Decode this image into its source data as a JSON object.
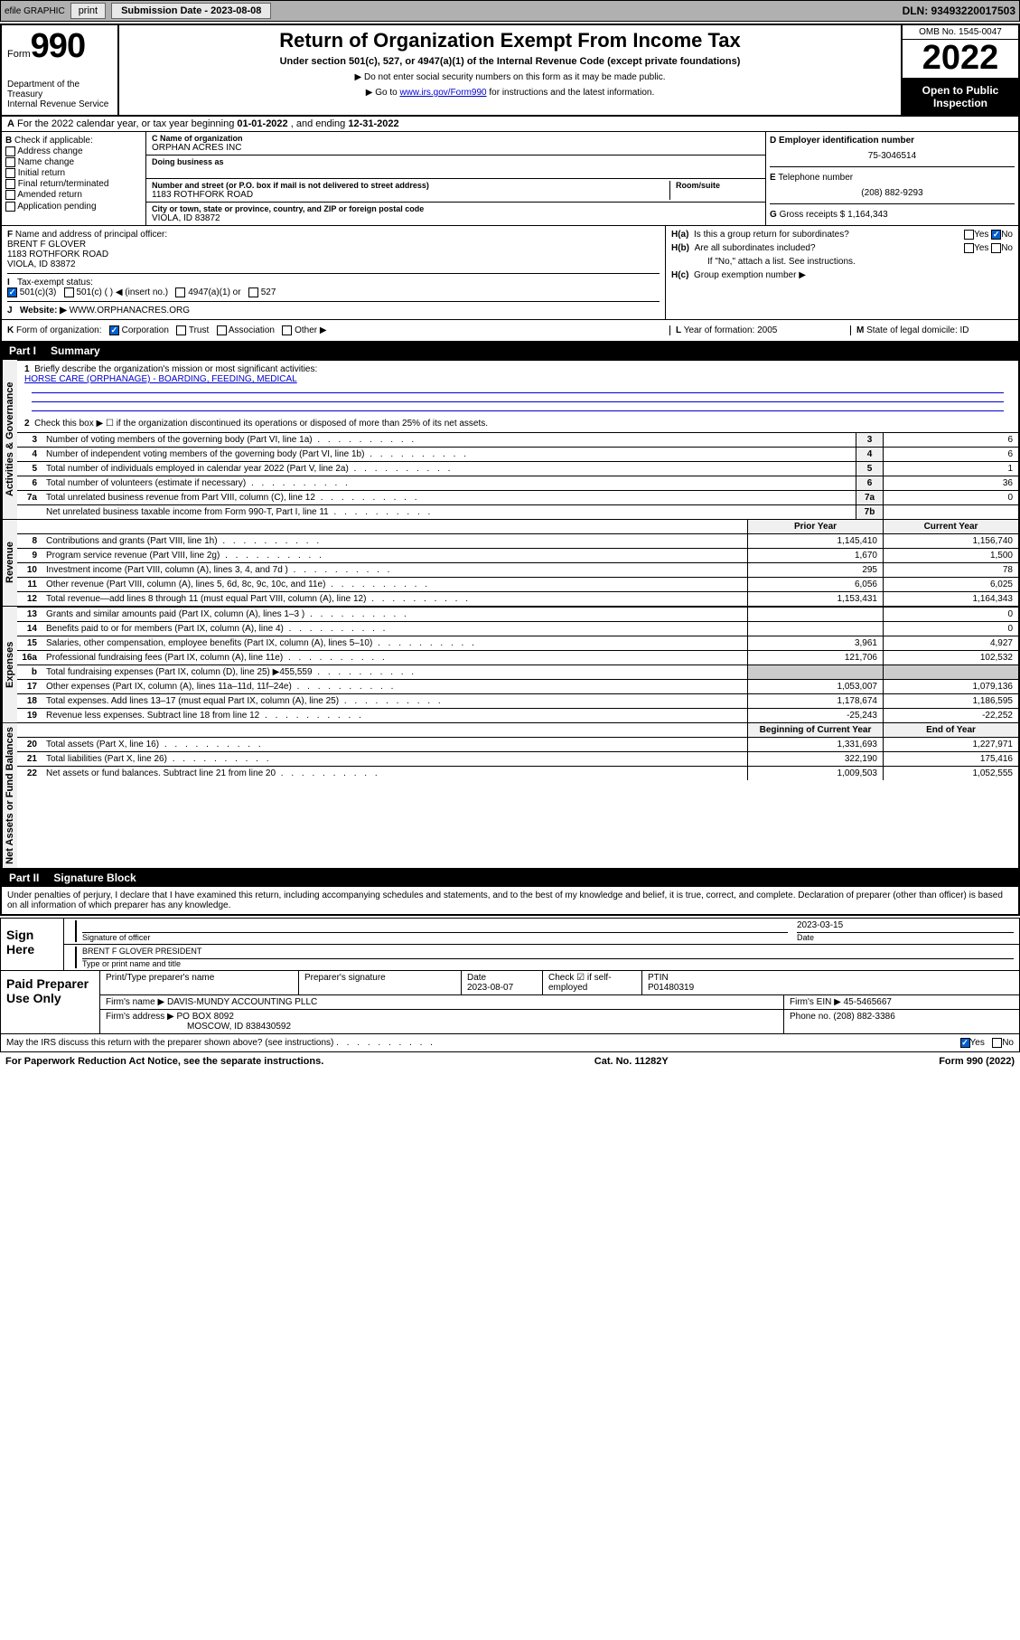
{
  "topbar": {
    "efile": "efile GRAPHIC",
    "print": "print",
    "submission": "Submission Date - 2023-08-08",
    "dln": "DLN: 93493220017503"
  },
  "header": {
    "form_word": "Form",
    "form_num": "990",
    "title": "Return of Organization Exempt From Income Tax",
    "subtitle": "Under section 501(c), 527, or 4947(a)(1) of the Internal Revenue Code (except private foundations)",
    "note1": "▶ Do not enter social security numbers on this form as it may be made public.",
    "note2_pre": "▶ Go to ",
    "note2_link": "www.irs.gov/Form990",
    "note2_post": " for instructions and the latest information.",
    "dept": "Department of the Treasury",
    "irs": "Internal Revenue Service",
    "omb": "OMB No. 1545-0047",
    "year": "2022",
    "open1": "Open to Public",
    "open2": "Inspection"
  },
  "row_a": {
    "text_pre": "For the 2022 calendar year, or tax year beginning ",
    "begin": "01-01-2022",
    "mid": "   , and ending ",
    "end": "12-31-2022"
  },
  "section_b": {
    "label": "Check if applicable:",
    "opts": [
      "Address change",
      "Name change",
      "Initial return",
      "Final return/terminated",
      "Amended return",
      "Application pending"
    ],
    "c_label": "Name of organization",
    "c_val": "ORPHAN ACRES INC",
    "dba_label": "Doing business as",
    "addr_label": "Number and street (or P.O. box if mail is not delivered to street address)",
    "room_label": "Room/suite",
    "addr_val": "1183 ROTHFORK ROAD",
    "city_label": "City or town, state or province, country, and ZIP or foreign postal code",
    "city_val": "VIOLA, ID  83872",
    "d_label": "Employer identification number",
    "d_val": "75-3046514",
    "e_label": "Telephone number",
    "e_val": "(208) 882-9293",
    "g_label": "Gross receipts $",
    "g_val": "1,164,343"
  },
  "row_f": {
    "f_label": "Name and address of principal officer:",
    "f_name": "BRENT F GLOVER",
    "f_addr1": "1183 ROTHFORK ROAD",
    "f_addr2": "VIOLA, ID  83872",
    "ha": "Is this a group return for subordinates?",
    "hb": "Are all subordinates included?",
    "hnote": "If \"No,\" attach a list. See instructions.",
    "hc": "Group exemption number ▶",
    "yes": "Yes",
    "no": "No"
  },
  "row_i": {
    "label": "Tax-exempt status:",
    "o1": "501(c)(3)",
    "o2": "501(c) (  ) ◀ (insert no.)",
    "o3": "4947(a)(1) or",
    "o4": "527"
  },
  "row_j": {
    "label": "Website: ▶",
    "val": "WWW.ORPHANACRES.ORG"
  },
  "row_k": {
    "k_label": "Form of organization:",
    "k_opts": [
      "Corporation",
      "Trust",
      "Association",
      "Other ▶"
    ],
    "l_label": "Year of formation:",
    "l_val": "2005",
    "m_label": "State of legal domicile:",
    "m_val": "ID"
  },
  "part1": {
    "num": "Part I",
    "title": "Summary",
    "q1_label": "Briefly describe the organization's mission or most significant activities:",
    "q1_val": "HORSE CARE (ORPHANAGE) - BOARDING, FEEDING, MEDICAL",
    "q2": "Check this box ▶ ☐  if the organization discontinued its operations or disposed of more than 25% of its net assets.",
    "sections": {
      "governance": "Activities & Governance",
      "revenue": "Revenue",
      "expenses": "Expenses",
      "netassets": "Net Assets or Fund Balances"
    },
    "col_prior": "Prior Year",
    "col_current": "Current Year",
    "col_begin": "Beginning of Current Year",
    "col_end": "End of Year",
    "lines_gov": [
      {
        "n": "3",
        "t": "Number of voting members of the governing body (Part VI, line 1a)",
        "box": "3",
        "v": "6"
      },
      {
        "n": "4",
        "t": "Number of independent voting members of the governing body (Part VI, line 1b)",
        "box": "4",
        "v": "6"
      },
      {
        "n": "5",
        "t": "Total number of individuals employed in calendar year 2022 (Part V, line 2a)",
        "box": "5",
        "v": "1"
      },
      {
        "n": "6",
        "t": "Total number of volunteers (estimate if necessary)",
        "box": "6",
        "v": "36"
      },
      {
        "n": "7a",
        "t": "Total unrelated business revenue from Part VIII, column (C), line 12",
        "box": "7a",
        "v": "0"
      },
      {
        "n": "",
        "t": "Net unrelated business taxable income from Form 990-T, Part I, line 11",
        "box": "7b",
        "v": ""
      }
    ],
    "lines_rev": [
      {
        "n": "8",
        "t": "Contributions and grants (Part VIII, line 1h)",
        "p": "1,145,410",
        "c": "1,156,740"
      },
      {
        "n": "9",
        "t": "Program service revenue (Part VIII, line 2g)",
        "p": "1,670",
        "c": "1,500"
      },
      {
        "n": "10",
        "t": "Investment income (Part VIII, column (A), lines 3, 4, and 7d )",
        "p": "295",
        "c": "78"
      },
      {
        "n": "11",
        "t": "Other revenue (Part VIII, column (A), lines 5, 6d, 8c, 9c, 10c, and 11e)",
        "p": "6,056",
        "c": "6,025"
      },
      {
        "n": "12",
        "t": "Total revenue—add lines 8 through 11 (must equal Part VIII, column (A), line 12)",
        "p": "1,153,431",
        "c": "1,164,343"
      }
    ],
    "lines_exp": [
      {
        "n": "13",
        "t": "Grants and similar amounts paid (Part IX, column (A), lines 1–3 )",
        "p": "",
        "c": "0"
      },
      {
        "n": "14",
        "t": "Benefits paid to or for members (Part IX, column (A), line 4)",
        "p": "",
        "c": "0"
      },
      {
        "n": "15",
        "t": "Salaries, other compensation, employee benefits (Part IX, column (A), lines 5–10)",
        "p": "3,961",
        "c": "4,927"
      },
      {
        "n": "16a",
        "t": "Professional fundraising fees (Part IX, column (A), line 11e)",
        "p": "121,706",
        "c": "102,532"
      },
      {
        "n": "b",
        "t": "Total fundraising expenses (Part IX, column (D), line 25) ▶455,559",
        "p": "—",
        "c": "—"
      },
      {
        "n": "17",
        "t": "Other expenses (Part IX, column (A), lines 11a–11d, 11f–24e)",
        "p": "1,053,007",
        "c": "1,079,136"
      },
      {
        "n": "18",
        "t": "Total expenses. Add lines 13–17 (must equal Part IX, column (A), line 25)",
        "p": "1,178,674",
        "c": "1,186,595"
      },
      {
        "n": "19",
        "t": "Revenue less expenses. Subtract line 18 from line 12",
        "p": "-25,243",
        "c": "-22,252"
      }
    ],
    "lines_net": [
      {
        "n": "20",
        "t": "Total assets (Part X, line 16)",
        "p": "1,331,693",
        "c": "1,227,971"
      },
      {
        "n": "21",
        "t": "Total liabilities (Part X, line 26)",
        "p": "322,190",
        "c": "175,416"
      },
      {
        "n": "22",
        "t": "Net assets or fund balances. Subtract line 21 from line 20",
        "p": "1,009,503",
        "c": "1,052,555"
      }
    ]
  },
  "part2": {
    "num": "Part II",
    "title": "Signature Block",
    "penalties": "Under penalties of perjury, I declare that I have examined this return, including accompanying schedules and statements, and to the best of my knowledge and belief, it is true, correct, and complete. Declaration of preparer (other than officer) is based on all information of which preparer has any knowledge.",
    "sign_here": "Sign Here",
    "sig_officer": "Signature of officer",
    "sig_date_label": "Date",
    "sig_date": "2023-03-15",
    "sig_name": "BRENT F GLOVER  PRESIDENT",
    "sig_name_label": "Type or print name and title",
    "paid_label": "Paid Preparer Use Only",
    "pp_name_label": "Print/Type preparer's name",
    "pp_sig_label": "Preparer's signature",
    "pp_date_label": "Date",
    "pp_date": "2023-08-07",
    "pp_check_label": "Check ☑ if self-employed",
    "pp_ptin_label": "PTIN",
    "pp_ptin": "P01480319",
    "firm_name_label": "Firm's name    ▶",
    "firm_name": "DAVIS-MUNDY ACCOUNTING PLLC",
    "firm_ein_label": "Firm's EIN ▶",
    "firm_ein": "45-5465667",
    "firm_addr_label": "Firm's address ▶",
    "firm_addr1": "PO BOX 8092",
    "firm_addr2": "MOSCOW, ID  838430592",
    "firm_phone_label": "Phone no.",
    "firm_phone": "(208) 882-3386",
    "may_irs": "May the IRS discuss this return with the preparer shown above? (see instructions)"
  },
  "footer": {
    "pra": "For Paperwork Reduction Act Notice, see the separate instructions.",
    "cat": "Cat. No. 11282Y",
    "form": "Form 990 (2022)"
  },
  "labels": {
    "b": "B",
    "c": "C",
    "d": "D",
    "e": "E",
    "f": "F",
    "g": "G",
    "ha": "H(a)",
    "hb": "H(b)",
    "hc": "H(c)",
    "i": "I",
    "j": "J",
    "k": "K",
    "l": "L",
    "m": "M",
    "a": "A"
  }
}
